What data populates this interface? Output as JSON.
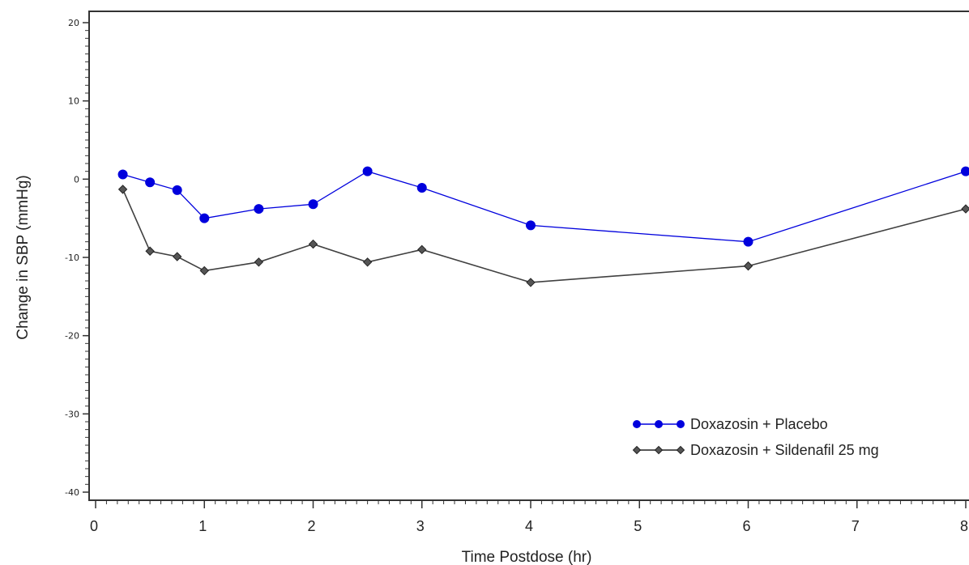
{
  "chart_data": {
    "type": "line",
    "title": "",
    "xlabel": "Time Postdose (hr)",
    "ylabel": "Change in SBP  (mmHg)",
    "xlim": [
      0,
      8
    ],
    "ylim": [
      -40,
      20
    ],
    "xticks": [
      "0",
      "1",
      "2",
      "3",
      "4",
      "5",
      "6",
      "7",
      "8"
    ],
    "yticks": [
      "20",
      "10",
      "0",
      "-10",
      "-20",
      "-30",
      "-40"
    ],
    "legend_position": "bottom-right",
    "grid": false,
    "series": [
      {
        "name": "Doxazosin + Placebo",
        "color": "#0000dd",
        "x": [
          0.25,
          0.5,
          0.75,
          1,
          1.5,
          2,
          2.5,
          3,
          4,
          6,
          8
        ],
        "y": [
          0.6,
          -0.4,
          -1.4,
          -5.0,
          -3.8,
          -3.2,
          1.0,
          -1.1,
          -5.9,
          -8.0,
          1.0
        ]
      },
      {
        "name": "Doxazosin + Sildenafil 25 mg",
        "color": "#404040",
        "x": [
          0.25,
          0.5,
          0.75,
          1,
          1.5,
          2,
          2.5,
          3,
          4,
          6,
          8
        ],
        "y": [
          -1.3,
          -9.2,
          -9.9,
          -11.7,
          -10.6,
          -8.3,
          -10.6,
          -9.0,
          -13.2,
          -11.1,
          -3.8
        ]
      }
    ]
  }
}
